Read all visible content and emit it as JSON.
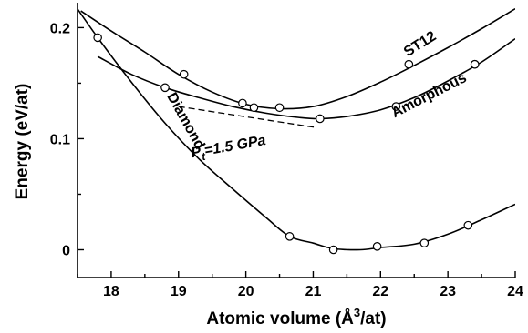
{
  "chart_data": {
    "type": "line",
    "xlabel": "Atomic volume (Å³/at)",
    "ylabel": "Energy (eV/at)",
    "xlim": [
      17.5,
      24
    ],
    "ylim": [
      -0.025,
      0.22
    ],
    "x_ticks": [
      {
        "value": 18,
        "label": "18"
      },
      {
        "value": 19,
        "label": "19"
      },
      {
        "value": 20,
        "label": "20"
      },
      {
        "value": 21,
        "label": "21"
      },
      {
        "value": 22,
        "label": "22"
      },
      {
        "value": 23,
        "label": "23"
      },
      {
        "value": 24,
        "label": "24"
      }
    ],
    "y_ticks": [
      {
        "value": 0,
        "label": "0"
      },
      {
        "value": 0.1,
        "label": "0.1"
      },
      {
        "value": 0.2,
        "label": "0.2"
      }
    ],
    "series": [
      {
        "name": "Diamond",
        "points": [
          [
            17.8,
            0.191
          ],
          [
            20.65,
            0.012
          ],
          [
            21.3,
            0.0
          ],
          [
            21.95,
            0.003
          ],
          [
            22.65,
            0.006
          ],
          [
            23.3,
            0.022
          ]
        ],
        "curve": [
          [
            17.35,
            0.23
          ],
          [
            17.8,
            0.191
          ],
          [
            18.3,
            0.151
          ],
          [
            18.8,
            0.114
          ],
          [
            19.3,
            0.082
          ],
          [
            19.8,
            0.055
          ],
          [
            20.3,
            0.029
          ],
          [
            20.65,
            0.012
          ],
          [
            21.0,
            0.006
          ],
          [
            21.3,
            0.001
          ],
          [
            21.7,
            0.0
          ],
          [
            22.0,
            0.002
          ],
          [
            22.5,
            0.005
          ],
          [
            23.0,
            0.014
          ],
          [
            23.5,
            0.027
          ],
          [
            24.0,
            0.041
          ]
        ]
      },
      {
        "name": "ST12",
        "points": [
          [
            19.08,
            0.158
          ],
          [
            20.12,
            0.128
          ],
          [
            20.5,
            0.128
          ],
          [
            22.42,
            0.167
          ],
          [
            23.4,
            0.167
          ]
        ],
        "curve": [
          [
            17.55,
            0.215
          ],
          [
            18.0,
            0.197
          ],
          [
            18.5,
            0.178
          ],
          [
            19.0,
            0.158
          ],
          [
            19.5,
            0.142
          ],
          [
            20.0,
            0.131
          ],
          [
            20.5,
            0.127
          ],
          [
            21.0,
            0.129
          ],
          [
            21.5,
            0.138
          ],
          [
            22.0,
            0.151
          ],
          [
            22.5,
            0.166
          ],
          [
            23.0,
            0.182
          ],
          [
            23.5,
            0.199
          ],
          [
            24.0,
            0.217
          ]
        ]
      },
      {
        "name": "Amorphous",
        "points": [
          [
            18.8,
            0.146
          ],
          [
            19.95,
            0.132
          ],
          [
            21.1,
            0.118
          ],
          [
            22.23,
            0.129
          ],
          [
            23.4,
            0.167
          ]
        ],
        "curve": [
          [
            17.8,
            0.174
          ],
          [
            18.3,
            0.158
          ],
          [
            18.8,
            0.146
          ],
          [
            19.3,
            0.137
          ],
          [
            19.8,
            0.129
          ],
          [
            20.3,
            0.123
          ],
          [
            20.8,
            0.119
          ],
          [
            21.1,
            0.118
          ],
          [
            21.5,
            0.12
          ],
          [
            22.0,
            0.126
          ],
          [
            22.5,
            0.137
          ],
          [
            23.0,
            0.152
          ],
          [
            23.5,
            0.169
          ],
          [
            24.0,
            0.19
          ]
        ]
      }
    ],
    "annotations": [
      {
        "text": "Pt=1.5 GPa",
        "style": "dashed common-tangent line",
        "line": [
          [
            19.0,
            0.129
          ],
          [
            21.05,
            0.11
          ]
        ]
      }
    ]
  }
}
